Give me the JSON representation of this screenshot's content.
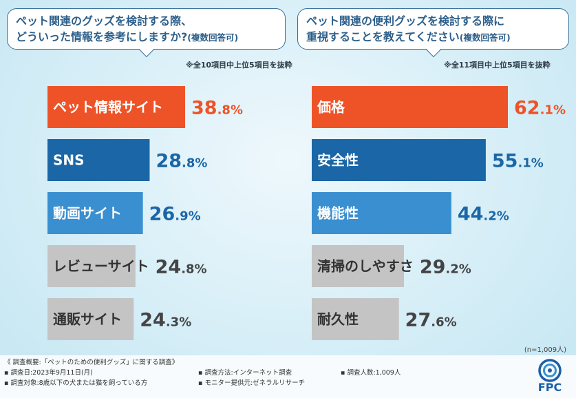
{
  "chart_data": [
    {
      "type": "bar",
      "title": "ペット関連のグッズを検討する際、どういった情報を参考にしますか?",
      "title_line1": "ペット関連のグッズを検討する際、",
      "title_line2": "どういった情報を参考にしますか?",
      "title_suffix": "(複数回答可)",
      "note": "※全10項目中上位5項目を抜粋",
      "categories": [
        "ペット情報サイト",
        "SNS",
        "動画サイト",
        "レビューサイト",
        "通販サイト"
      ],
      "values": [
        38.8,
        28.8,
        26.9,
        24.8,
        24.3
      ],
      "value_labels": [
        "38.8%",
        "28.8%",
        "26.9%",
        "24.8%",
        "24.3%"
      ],
      "colors": [
        "#ee5328",
        "#1a66a6",
        "#3a8fd0",
        "#c4c4c4",
        "#c4c4c4"
      ]
    },
    {
      "type": "bar",
      "title": "ペット関連の便利グッズを検討する際に重視することを教えてください",
      "title_line1": "ペット関連の便利グッズを検討する際に",
      "title_line2": "重視することを教えてください",
      "title_suffix": "(複数回答可)",
      "note": "※全11項目中上位5項目を抜粋",
      "categories": [
        "価格",
        "安全性",
        "機能性",
        "清掃のしやすさ",
        "耐久性"
      ],
      "values": [
        62.1,
        55.1,
        44.2,
        29.2,
        27.6
      ],
      "value_labels": [
        "62.1%",
        "55.1%",
        "44.2%",
        "29.2%",
        "27.6%"
      ],
      "colors": [
        "#ee5328",
        "#1a66a6",
        "#3a8fd0",
        "#c4c4c4",
        "#c4c4c4"
      ]
    }
  ],
  "n_note": "(n=1,009人)",
  "footer": {
    "overview": "《 調査概要:「ペットのための便利グッズ」に関する調査》",
    "date": "▪ 調査日:2023年9月11日(月)",
    "method": "▪ 調査方法:インターネット調査",
    "people": "▪ 調査人数:1,009人",
    "target": "▪ 調査対象:8歳以下の犬または猫を飼っている方",
    "provider": "▪ モニター提供元:ゼネラルリサーチ"
  },
  "logo": {
    "text": "FPC",
    "color": "#1a5fa8"
  }
}
